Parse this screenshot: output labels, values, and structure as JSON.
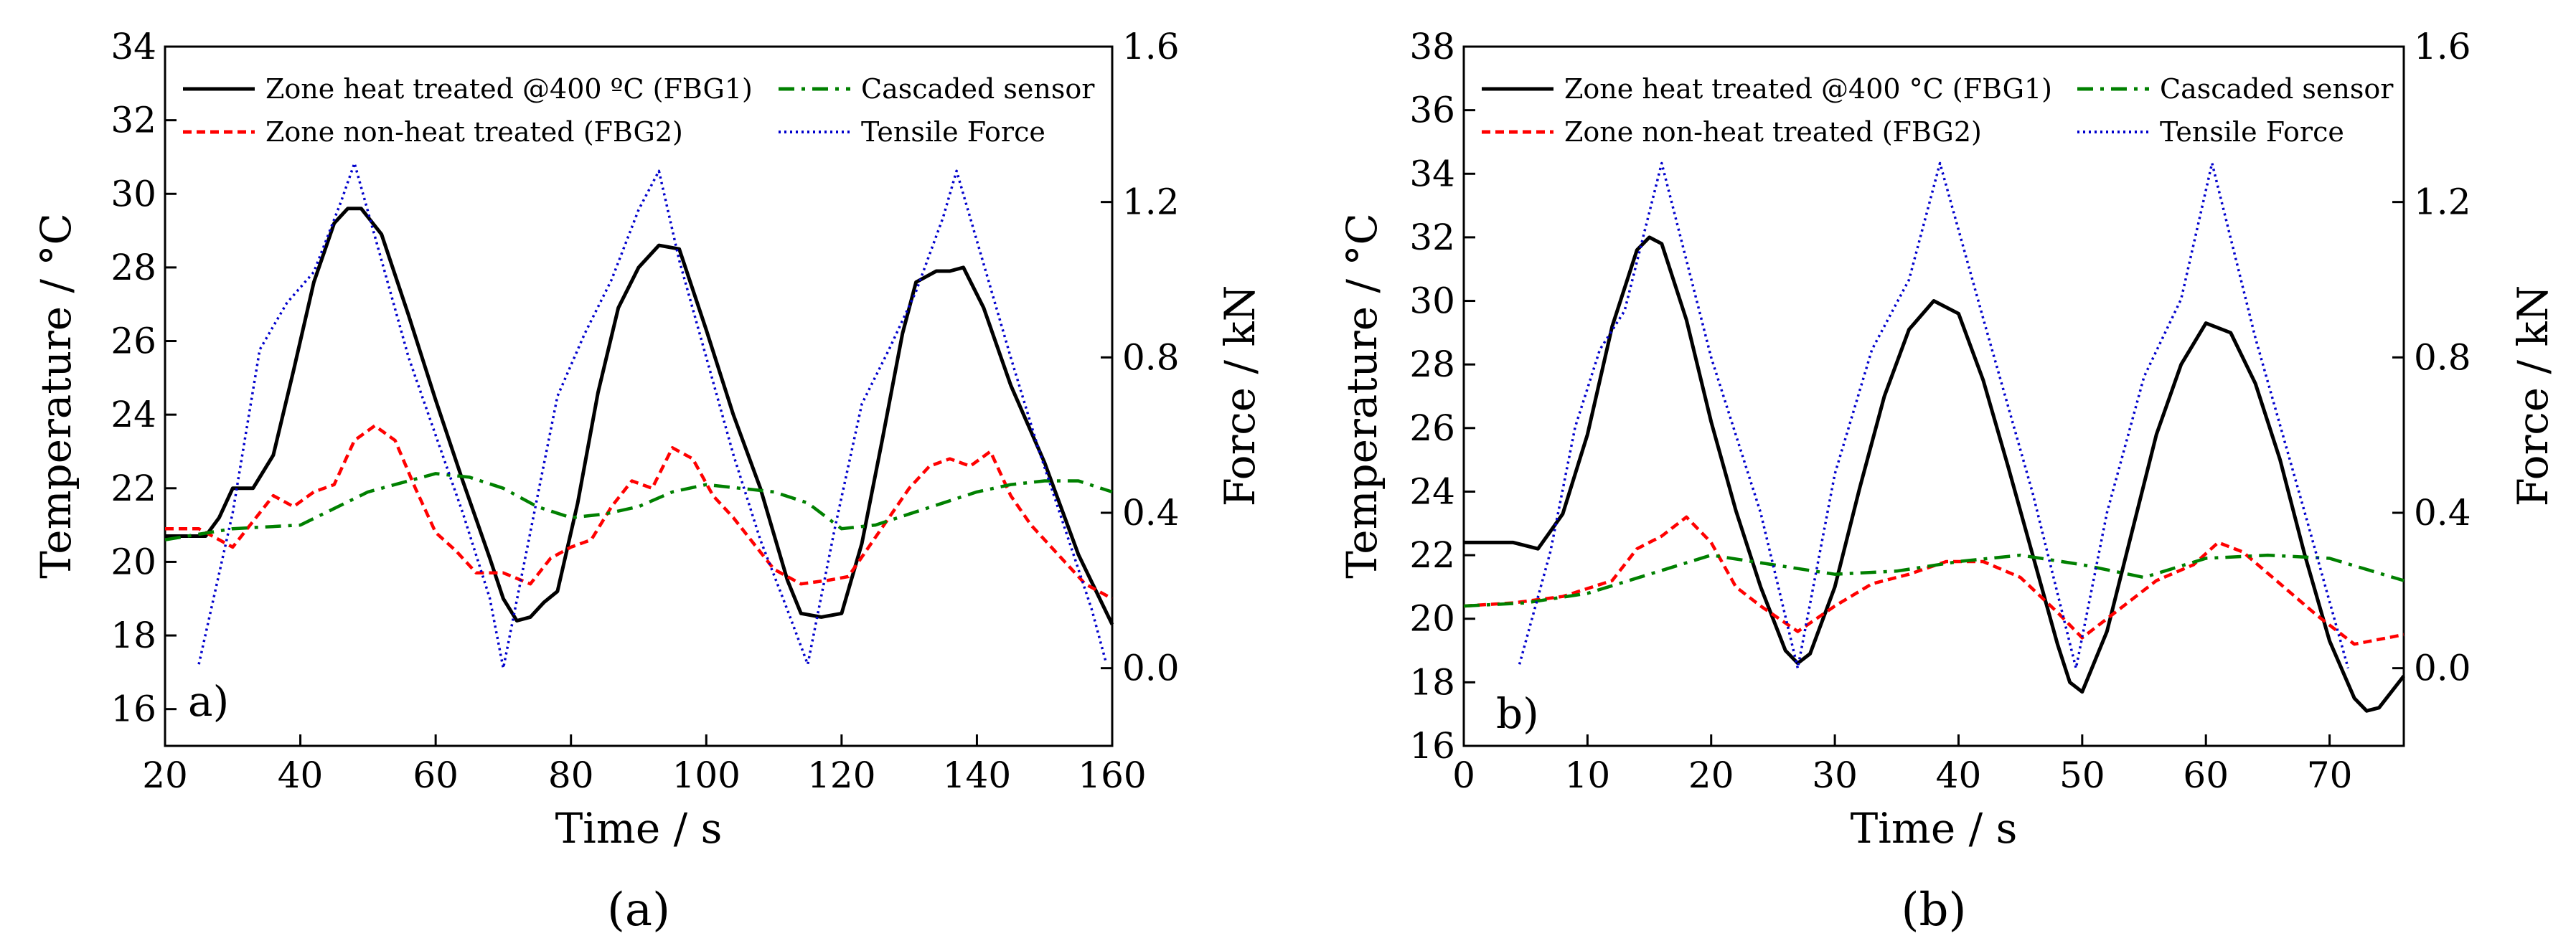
{
  "chart_data": [
    {
      "type": "line",
      "panel_label": "a)",
      "caption": "(a)",
      "xlabel": "Time / s",
      "ylabel": "Temperature / °C",
      "y2label": "Force / kN",
      "xlim": [
        20,
        160
      ],
      "ylim": [
        15,
        34
      ],
      "y2lim": [
        -0.2,
        1.6
      ],
      "xticks": [
        20,
        40,
        60,
        80,
        100,
        120,
        140,
        160
      ],
      "yticks": [
        16,
        18,
        20,
        22,
        24,
        26,
        28,
        30,
        32,
        34
      ],
      "y2ticks": [
        0.0,
        0.4,
        0.8,
        1.2,
        1.6
      ],
      "xtick_labels": [
        "20",
        "40",
        "60",
        "80",
        "100",
        "120",
        "140",
        "160"
      ],
      "ytick_labels": [
        "16",
        "18",
        "20",
        "22",
        "24",
        "26",
        "28",
        "30",
        "32",
        "34"
      ],
      "y2tick_labels": [
        "0.0",
        "0.4",
        "0.8",
        "1.2",
        "1.6"
      ],
      "legend": [
        {
          "label": "Zone heat treated  @400 ºC (FBG1)",
          "series": 0
        },
        {
          "label": "Cascaded  sensor",
          "series": 2
        },
        {
          "label": "Zone non-heat treated (FBG2)",
          "series": 1
        },
        {
          "label": "Tensile Force",
          "series": 3
        }
      ],
      "series": [
        {
          "name": "Zone heat treated @400 ºC (FBG1)",
          "axis": "left",
          "color": "#000000",
          "style": "solid",
          "x": [
            20,
            26,
            28,
            30,
            33,
            36,
            39,
            42,
            45,
            47,
            49,
            52,
            56,
            60,
            64,
            68,
            70,
            72,
            74,
            76,
            78,
            81,
            84,
            87,
            90,
            93,
            96,
            100,
            104,
            108,
            112,
            114,
            117,
            120,
            123,
            126,
            129,
            131,
            134,
            136,
            138,
            141,
            145,
            150,
            155,
            160
          ],
          "y": [
            20.7,
            20.7,
            21.2,
            22.0,
            22.0,
            22.9,
            25.2,
            27.6,
            29.2,
            29.6,
            29.6,
            28.9,
            26.7,
            24.4,
            22.2,
            20.1,
            19.0,
            18.4,
            18.5,
            18.9,
            19.2,
            21.6,
            24.6,
            26.9,
            28.0,
            28.6,
            28.5,
            26.3,
            24.0,
            22.0,
            19.5,
            18.6,
            18.5,
            18.6,
            20.5,
            23.3,
            26.2,
            27.6,
            27.9,
            27.9,
            28.0,
            26.9,
            24.8,
            22.7,
            20.2,
            18.3
          ]
        },
        {
          "name": "Zone non-heat treated (FBG2)",
          "axis": "left",
          "color": "#ff0000",
          "style": "dashed",
          "x": [
            20,
            25,
            30,
            33,
            36,
            39,
            42,
            45,
            48,
            51,
            54,
            57,
            60,
            63,
            66,
            70,
            74,
            77,
            80,
            83,
            86,
            89,
            92,
            95,
            98,
            101,
            104,
            107,
            110,
            114,
            118,
            121,
            124,
            127,
            130,
            133,
            136,
            139,
            142,
            145,
            148,
            152,
            156,
            160
          ],
          "y": [
            20.9,
            20.9,
            20.4,
            21.1,
            21.8,
            21.5,
            21.9,
            22.1,
            23.3,
            23.7,
            23.3,
            22.0,
            20.8,
            20.3,
            19.7,
            19.7,
            19.4,
            20.1,
            20.4,
            20.6,
            21.5,
            22.2,
            22.0,
            23.1,
            22.8,
            21.8,
            21.2,
            20.5,
            19.8,
            19.4,
            19.5,
            19.6,
            20.4,
            21.2,
            22.0,
            22.6,
            22.8,
            22.6,
            23.0,
            21.8,
            21.0,
            20.2,
            19.4,
            19.0
          ]
        },
        {
          "name": "Cascaded sensor",
          "axis": "left",
          "color": "#008000",
          "style": "dashdot",
          "x": [
            20,
            30,
            40,
            50,
            60,
            65,
            70,
            75,
            80,
            85,
            90,
            95,
            100,
            105,
            110,
            115,
            120,
            125,
            130,
            135,
            140,
            145,
            150,
            155,
            160
          ],
          "y": [
            20.6,
            20.9,
            21.0,
            21.9,
            22.4,
            22.3,
            22.0,
            21.5,
            21.2,
            21.3,
            21.5,
            21.9,
            22.1,
            22.0,
            21.9,
            21.6,
            20.9,
            21.0,
            21.3,
            21.6,
            21.9,
            22.1,
            22.2,
            22.2,
            21.9
          ]
        },
        {
          "name": "Tensile Force",
          "axis": "right",
          "color": "#0000cc",
          "style": "dotted",
          "x": [
            25,
            30,
            34,
            38,
            42,
            46,
            48,
            52,
            56,
            60,
            64,
            68,
            70,
            74,
            78,
            82,
            86,
            90,
            93,
            96,
            100,
            104,
            108,
            112,
            115,
            119,
            123,
            127,
            131,
            135,
            137,
            141,
            145,
            149,
            153,
            157,
            159
          ],
          "y": [
            0.01,
            0.4,
            0.82,
            0.94,
            1.02,
            1.2,
            1.3,
            1.05,
            0.8,
            0.6,
            0.4,
            0.18,
            0.0,
            0.35,
            0.7,
            0.86,
            1.0,
            1.18,
            1.28,
            1.05,
            0.8,
            0.55,
            0.33,
            0.15,
            0.01,
            0.36,
            0.68,
            0.82,
            0.97,
            1.16,
            1.28,
            1.04,
            0.8,
            0.57,
            0.36,
            0.15,
            0.02
          ]
        }
      ]
    },
    {
      "type": "line",
      "panel_label": "b)",
      "caption": "(b)",
      "xlabel": "Time / s",
      "ylabel": "Temperature / °C",
      "y2label": "Force / kN",
      "xlim": [
        0,
        76
      ],
      "ylim": [
        16,
        38
      ],
      "y2lim": [
        -0.2,
        1.6
      ],
      "xticks": [
        0,
        10,
        20,
        30,
        40,
        50,
        60,
        70
      ],
      "yticks": [
        16,
        18,
        20,
        22,
        24,
        26,
        28,
        30,
        32,
        34,
        36,
        38
      ],
      "y2ticks": [
        0.0,
        0.4,
        0.8,
        1.2,
        1.6
      ],
      "xtick_labels": [
        "0",
        "10",
        "20",
        "30",
        "40",
        "50",
        "60",
        "70"
      ],
      "ytick_labels": [
        "16",
        "18",
        "20",
        "22",
        "24",
        "26",
        "28",
        "30",
        "32",
        "34",
        "36",
        "38"
      ],
      "y2tick_labels": [
        "0.0",
        "0.4",
        "0.8",
        "1.2",
        "1.6"
      ],
      "legend": [
        {
          "label": "Zone heat treated  @400 °C (FBG1)",
          "series": 0
        },
        {
          "label": "Cascaded  sensor",
          "series": 2
        },
        {
          "label": "Zone non-heat treated (FBG2)",
          "series": 1
        },
        {
          "label": "Tensile Force",
          "series": 3
        }
      ],
      "series": [
        {
          "name": "Zone heat treated @400 °C (FBG1)",
          "axis": "left",
          "color": "#000000",
          "style": "solid",
          "x": [
            0,
            4,
            6,
            8,
            10,
            12,
            14,
            15,
            16,
            18,
            20,
            22,
            24,
            26,
            27,
            28,
            30,
            32,
            34,
            36,
            38,
            40,
            42,
            44,
            46,
            48,
            49,
            50,
            52,
            54,
            56,
            58,
            60,
            62,
            64,
            66,
            68,
            70,
            72,
            73,
            74,
            76
          ],
          "y": [
            22.4,
            22.4,
            22.2,
            23.3,
            25.8,
            29.2,
            31.6,
            32.0,
            31.8,
            29.4,
            26.2,
            23.4,
            21.0,
            19.0,
            18.6,
            18.9,
            21.0,
            24.1,
            27.0,
            29.1,
            30.0,
            29.6,
            27.5,
            24.8,
            22.0,
            19.2,
            18.0,
            17.7,
            19.6,
            22.7,
            25.8,
            28.0,
            29.3,
            29.0,
            27.4,
            25.0,
            22.0,
            19.3,
            17.5,
            17.1,
            17.2,
            18.2
          ]
        },
        {
          "name": "Zone non-heat treated (FBG2)",
          "axis": "left",
          "color": "#ff0000",
          "style": "dashed",
          "x": [
            0,
            4,
            8,
            12,
            14,
            16,
            18,
            20,
            22,
            24,
            27,
            30,
            33,
            36,
            39,
            42,
            45,
            48,
            50,
            53,
            56,
            59,
            61,
            63,
            66,
            69,
            72,
            76
          ],
          "y": [
            20.4,
            20.5,
            20.7,
            21.2,
            22.2,
            22.6,
            23.2,
            22.4,
            21.0,
            20.4,
            19.6,
            20.4,
            21.1,
            21.4,
            21.8,
            21.8,
            21.3,
            20.2,
            19.4,
            20.3,
            21.2,
            21.7,
            22.4,
            22.1,
            21.1,
            20.1,
            19.2,
            19.5
          ]
        },
        {
          "name": "Cascaded sensor",
          "axis": "left",
          "color": "#008000",
          "style": "dashdot",
          "x": [
            0,
            5,
            10,
            15,
            20,
            25,
            30,
            35,
            40,
            45,
            50,
            55,
            60,
            65,
            70,
            76
          ],
          "y": [
            20.4,
            20.5,
            20.8,
            21.4,
            22.0,
            21.7,
            21.4,
            21.5,
            21.8,
            22.0,
            21.7,
            21.3,
            21.9,
            22.0,
            21.9,
            21.2
          ]
        },
        {
          "name": "Tensile Force",
          "axis": "right",
          "color": "#0000cc",
          "style": "dotted",
          "x": [
            4.5,
            7,
            9,
            11,
            13,
            16,
            20,
            24,
            27,
            30,
            33,
            36,
            38.5,
            42,
            46,
            49.5,
            52,
            55,
            58,
            60.5,
            64,
            68,
            71.5
          ],
          "y": [
            0.01,
            0.3,
            0.62,
            0.82,
            0.92,
            1.3,
            0.8,
            0.4,
            0.0,
            0.5,
            0.82,
            1.0,
            1.3,
            0.9,
            0.45,
            0.0,
            0.4,
            0.75,
            0.95,
            1.3,
            0.85,
            0.4,
            0.0
          ]
        }
      ]
    }
  ]
}
